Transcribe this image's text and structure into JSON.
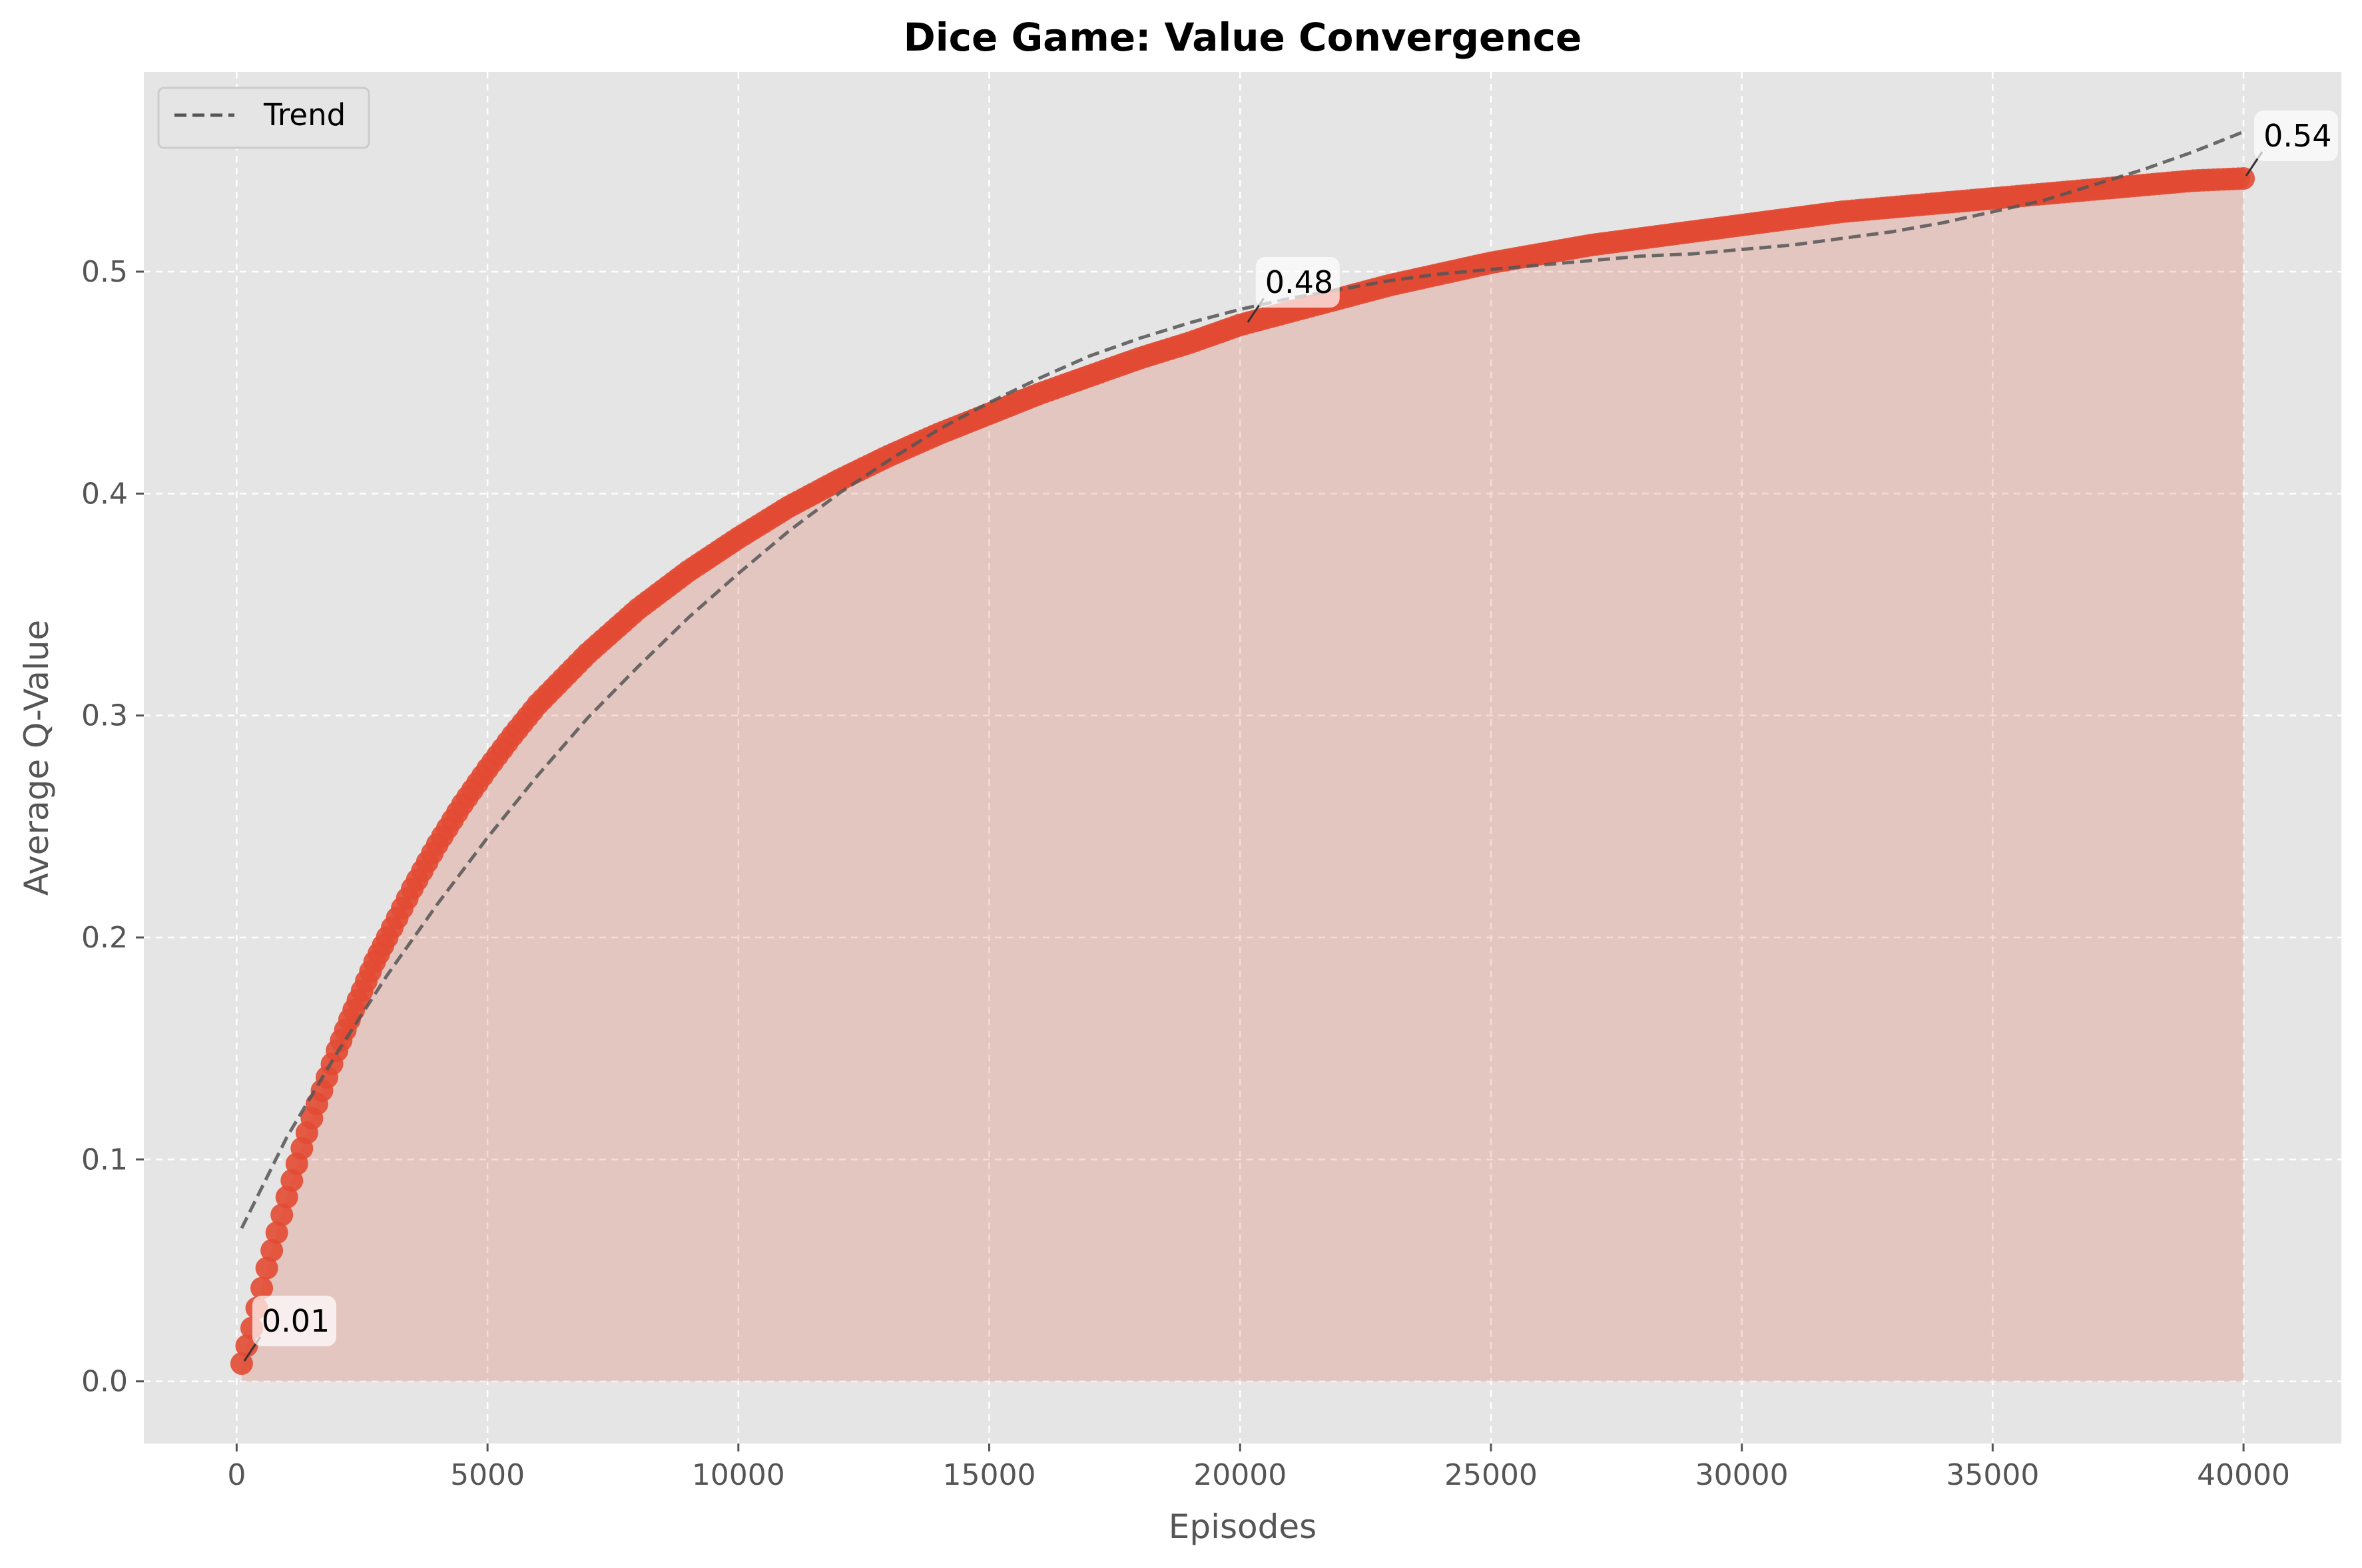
{
  "chart_data": {
    "type": "scatter",
    "title": "Dice Game: Value Convergence",
    "xlabel": "Episodes",
    "ylabel": "Average Q-Value",
    "xlim": [
      -1850,
      41950
    ],
    "ylim": [
      -0.028,
      0.59
    ],
    "x_ticks": [
      0,
      5000,
      10000,
      15000,
      20000,
      25000,
      30000,
      35000,
      40000
    ],
    "y_ticks": [
      0.0,
      0.1,
      0.2,
      0.3,
      0.4,
      0.5
    ],
    "x_tick_labels": [
      "0",
      "5000",
      "10000",
      "15000",
      "20000",
      "25000",
      "30000",
      "35000",
      "40000"
    ],
    "y_tick_labels": [
      "0.0",
      "0.1",
      "0.2",
      "0.3",
      "0.4",
      "0.5"
    ],
    "grid": true,
    "legend_position": "top-left",
    "series": [
      {
        "name": "",
        "kind": "scatter-with-area-fill",
        "color": "#E24A33",
        "fill_color": "#E24A33",
        "x": [
          100,
          200,
          300,
          400,
          500,
          600,
          700,
          800,
          900,
          1000,
          1200,
          1400,
          1600,
          1800,
          2000,
          2250,
          2500,
          2750,
          3000,
          3500,
          4000,
          4500,
          5000,
          5500,
          6000,
          7000,
          8000,
          9000,
          10000,
          11000,
          12000,
          13000,
          14000,
          15000,
          16000,
          17000,
          18000,
          19000,
          20000,
          21000,
          22000,
          23000,
          24000,
          25000,
          26000,
          27000,
          28000,
          29000,
          30000,
          31000,
          32000,
          33000,
          34000,
          35000,
          36000,
          37000,
          38000,
          39000,
          40000
        ],
        "y": [
          0.008,
          0.016,
          0.024,
          0.033,
          0.042,
          0.051,
          0.059,
          0.067,
          0.075,
          0.083,
          0.098,
          0.112,
          0.125,
          0.137,
          0.149,
          0.163,
          0.176,
          0.189,
          0.2,
          0.222,
          0.242,
          0.26,
          0.276,
          0.291,
          0.305,
          0.328,
          0.348,
          0.365,
          0.38,
          0.394,
          0.406,
          0.417,
          0.427,
          0.436,
          0.445,
          0.453,
          0.461,
          0.468,
          0.476,
          0.482,
          0.488,
          0.494,
          0.499,
          0.504,
          0.508,
          0.512,
          0.515,
          0.518,
          0.521,
          0.524,
          0.527,
          0.529,
          0.531,
          0.533,
          0.535,
          0.537,
          0.539,
          0.541,
          0.542
        ]
      },
      {
        "name": "Trend",
        "kind": "dashed-line",
        "color": "#555555",
        "x": [
          100,
          1000,
          2000,
          3000,
          4000,
          5000,
          6000,
          7000,
          8000,
          9000,
          10000,
          11000,
          12000,
          13000,
          14000,
          15000,
          16000,
          17000,
          18000,
          19000,
          20000,
          21000,
          22000,
          23000,
          24000,
          25000,
          26000,
          27000,
          28000,
          29000,
          30000,
          31000,
          32000,
          33000,
          34000,
          35000,
          36000,
          37000,
          38000,
          39000,
          40000
        ],
        "y": [
          0.069,
          0.11,
          0.148,
          0.183,
          0.215,
          0.245,
          0.273,
          0.299,
          0.322,
          0.344,
          0.364,
          0.383,
          0.4,
          0.415,
          0.429,
          0.441,
          0.452,
          0.462,
          0.47,
          0.477,
          0.483,
          0.488,
          0.492,
          0.496,
          0.499,
          0.501,
          0.503,
          0.505,
          0.507,
          0.508,
          0.51,
          0.512,
          0.515,
          0.518,
          0.522,
          0.527,
          0.532,
          0.539,
          0.546,
          0.554,
          0.563
        ]
      }
    ],
    "annotations": [
      {
        "text": "0.01",
        "x": 100,
        "y": 0.008
      },
      {
        "text": "0.48",
        "x": 20100,
        "y": 0.476
      },
      {
        "text": "0.54",
        "x": 40000,
        "y": 0.542
      }
    ]
  }
}
